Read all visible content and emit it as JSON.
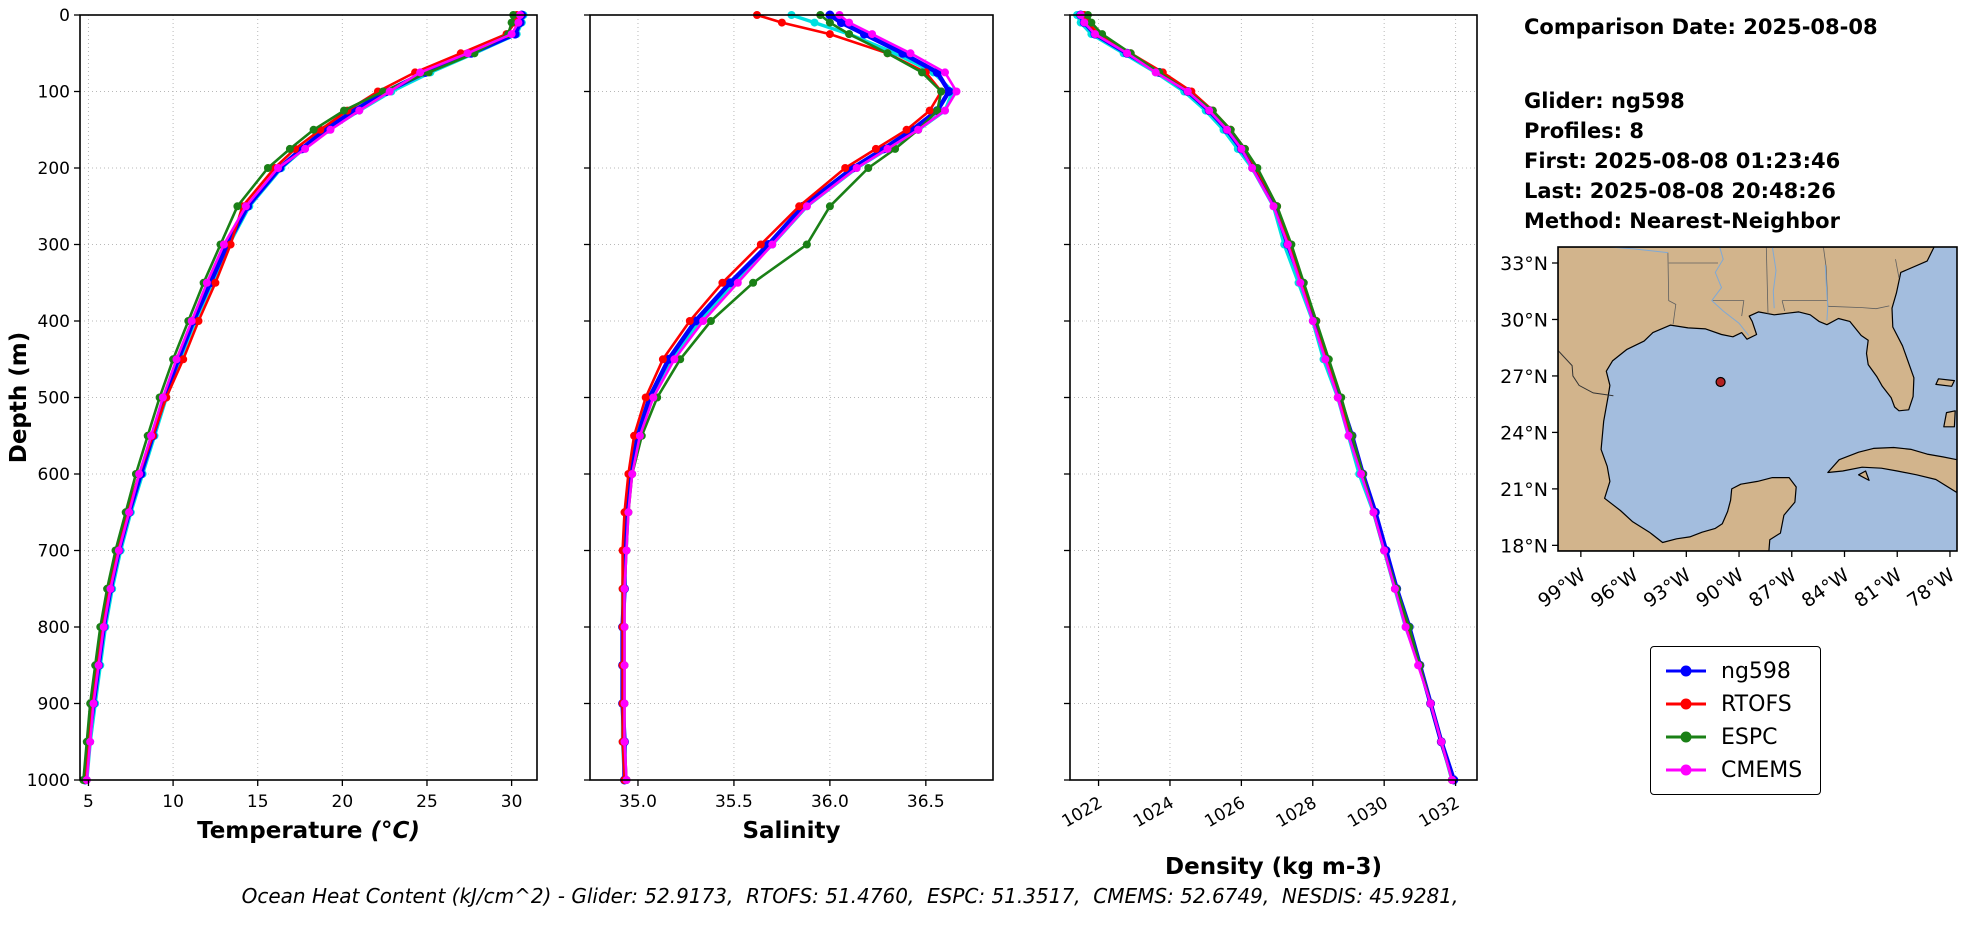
{
  "info_panel": {
    "lines": [
      "Comparison Date: 2025-08-08",
      "Glider: ng598",
      "Profiles: 8",
      "First: 2025-08-08 01:23:46",
      "Last: 2025-08-08 20:48:26",
      "Method: Nearest-Neighbor"
    ]
  },
  "legend": {
    "items": [
      {
        "label": "ng598",
        "color": "#0000ff"
      },
      {
        "label": "RTOFS",
        "color": "#ff0000"
      },
      {
        "label": "ESPC",
        "color": "#1a8016"
      },
      {
        "label": "CMEMS",
        "color": "#ff00ff"
      }
    ]
  },
  "footer": {
    "text": "Ocean Heat Content (kJ/cm^2) - Glider: 52.9173,  RTOFS: 51.4760,  ESPC: 51.3517,  CMEMS: 52.6749,  NESDIS: 45.9281,"
  },
  "map": {
    "colors": {
      "land": "#d2b48c",
      "water": "#a3bdde",
      "marker": "#b22222",
      "river": "#7fa9d6",
      "state_line": "#5f5f5f"
    },
    "marker": {
      "lon": -91.05,
      "lat": 26.68
    },
    "lat_ticks": [
      {
        "v": 33,
        "label": "33°N"
      },
      {
        "v": 30,
        "label": "30°N"
      },
      {
        "v": 27,
        "label": "27°N"
      },
      {
        "v": 24,
        "label": "24°N"
      },
      {
        "v": 21,
        "label": "21°N"
      },
      {
        "v": 18,
        "label": "18°N"
      }
    ],
    "lon_ticks": [
      {
        "v": -99,
        "label": "99°W"
      },
      {
        "v": -96,
        "label": "96°W"
      },
      {
        "v": -93,
        "label": "93°W"
      },
      {
        "v": -90,
        "label": "90°W"
      },
      {
        "v": -87,
        "label": "87°W"
      },
      {
        "v": -84,
        "label": "84°W"
      },
      {
        "v": -81,
        "label": "81°W"
      },
      {
        "v": -78,
        "label": "78°W"
      }
    ]
  },
  "chart_data": {
    "type": "line",
    "ylabel": "Depth (m)",
    "ylim": [
      0,
      1000
    ],
    "yticks": [
      0,
      100,
      200,
      300,
      400,
      500,
      600,
      700,
      800,
      900,
      1000
    ],
    "depths": [
      0,
      10,
      25,
      50,
      75,
      100,
      125,
      150,
      175,
      200,
      250,
      300,
      350,
      400,
      450,
      500,
      550,
      600,
      650,
      700,
      750,
      800,
      850,
      900,
      950,
      1000
    ],
    "charts": [
      {
        "id": "temperature",
        "xlabel": "Temperature ",
        "xlabel_unit": "(°C)",
        "xlim": [
          4.5,
          31.5
        ],
        "xticks": [
          5,
          10,
          15,
          20,
          25,
          30
        ],
        "xtick_labels": [
          "5",
          "10",
          "15",
          "20",
          "25",
          "30"
        ],
        "rotate_xticks": false,
        "series": [
          {
            "name": "glider-profiles",
            "color": "#00e0e0",
            "lw": 3.5,
            "r": 4,
            "values": [
              30.7,
              30.6,
              30.3,
              27.8,
              25.2,
              22.9,
              21.0,
              19.2,
              17.7,
              16.4,
              14.5,
              13.3,
              12.3,
              11.3,
              10.4,
              9.6,
              8.9,
              8.2,
              7.5,
              6.9,
              6.4,
              6.0,
              5.7,
              5.4,
              5.1,
              4.9
            ]
          },
          {
            "name": "ng598",
            "color": "#0000ff",
            "lw": 4.5,
            "r": 4.5,
            "values": [
              30.6,
              30.5,
              30.2,
              27.6,
              24.9,
              22.6,
              20.7,
              19.0,
              17.6,
              16.3,
              14.4,
              13.2,
              12.2,
              11.2,
              10.3,
              9.5,
              8.8,
              8.1,
              7.4,
              6.8,
              6.3,
              5.9,
              5.6,
              5.3,
              5.0,
              4.8
            ]
          },
          {
            "name": "RTOFS",
            "color": "#ff0000",
            "lw": 2.6,
            "r": 4,
            "values": [
              30.3,
              30.2,
              29.7,
              27.0,
              24.3,
              22.1,
              20.3,
              18.7,
              17.2,
              16.0,
              14.1,
              13.4,
              12.5,
              11.5,
              10.6,
              9.6,
              8.8,
              8.0,
              7.3,
              6.7,
              6.2,
              5.8,
              5.5,
              5.2,
              5.0,
              4.8
            ]
          },
          {
            "name": "ESPC",
            "color": "#1a8016",
            "lw": 2.6,
            "r": 4,
            "values": [
              30.1,
              30.0,
              29.8,
              27.8,
              25.1,
              22.4,
              20.1,
              18.3,
              16.9,
              15.6,
              13.8,
              12.8,
              11.8,
              10.9,
              10.0,
              9.2,
              8.5,
              7.8,
              7.2,
              6.6,
              6.1,
              5.7,
              5.4,
              5.1,
              4.9,
              4.7
            ]
          },
          {
            "name": "CMEMS",
            "color": "#ff00ff",
            "lw": 2.6,
            "r": 4,
            "values": [
              30.5,
              30.4,
              30.0,
              27.4,
              24.6,
              22.8,
              21.0,
              19.3,
              17.8,
              16.2,
              14.3,
              13.0,
              12.0,
              11.1,
              10.2,
              9.4,
              8.7,
              8.0,
              7.4,
              6.8,
              6.3,
              5.9,
              5.6,
              5.3,
              5.1,
              4.9
            ]
          }
        ]
      },
      {
        "id": "salinity",
        "xlabel": "Salinity",
        "xlabel_unit": "",
        "xlim": [
          34.75,
          36.85
        ],
        "xticks": [
          35.0,
          35.5,
          36.0,
          36.5
        ],
        "xtick_labels": [
          "35.0",
          "35.5",
          "36.0",
          "36.5"
        ],
        "rotate_xticks": false,
        "series": [
          {
            "name": "glider-profiles",
            "color": "#00e0e0",
            "lw": 3.5,
            "r": 4,
            "values": [
              35.8,
              35.92,
              36.1,
              36.34,
              36.54,
              36.64,
              36.6,
              36.46,
              36.3,
              36.14,
              35.88,
              35.7,
              35.5,
              35.32,
              35.18,
              35.06,
              34.99,
              34.96,
              34.94,
              34.93,
              34.92,
              34.92,
              34.92,
              34.92,
              34.92,
              34.93
            ]
          },
          {
            "name": "ng598",
            "color": "#0000ff",
            "lw": 4.5,
            "r": 4.5,
            "values": [
              36.0,
              36.06,
              36.18,
              36.38,
              36.56,
              36.62,
              36.56,
              36.43,
              36.28,
              36.12,
              35.86,
              35.68,
              35.48,
              35.3,
              35.16,
              35.06,
              35.0,
              34.96,
              34.94,
              34.93,
              34.93,
              34.92,
              34.92,
              34.92,
              34.93,
              34.93
            ]
          },
          {
            "name": "RTOFS",
            "color": "#ff0000",
            "lw": 2.6,
            "r": 4,
            "values": [
              35.62,
              35.75,
              36.0,
              36.3,
              36.5,
              36.58,
              36.52,
              36.4,
              36.24,
              36.08,
              35.84,
              35.64,
              35.44,
              35.27,
              35.13,
              35.04,
              34.98,
              34.95,
              34.93,
              34.92,
              34.92,
              34.92,
              34.92,
              34.92,
              34.92,
              34.93
            ]
          },
          {
            "name": "ESPC",
            "color": "#1a8016",
            "lw": 2.6,
            "r": 4,
            "values": [
              35.95,
              36.0,
              36.1,
              36.3,
              36.48,
              36.58,
              36.56,
              36.46,
              36.34,
              36.2,
              36.0,
              35.88,
              35.6,
              35.38,
              35.22,
              35.1,
              35.02,
              34.97,
              34.95,
              34.94,
              34.93,
              34.93,
              34.93,
              34.93,
              34.93,
              34.94
            ]
          },
          {
            "name": "CMEMS",
            "color": "#ff00ff",
            "lw": 2.6,
            "r": 4,
            "values": [
              36.05,
              36.1,
              36.22,
              36.42,
              36.6,
              36.66,
              36.6,
              36.46,
              36.3,
              36.14,
              35.88,
              35.7,
              35.52,
              35.34,
              35.19,
              35.08,
              35.01,
              34.97,
              34.95,
              34.94,
              34.93,
              34.93,
              34.93,
              34.93,
              34.93,
              34.94
            ]
          }
        ]
      },
      {
        "id": "density",
        "xlabel": "Density (kg m-3)",
        "xlabel_unit": "",
        "xlim": [
          1021.2,
          1032.6
        ],
        "xticks": [
          1022,
          1024,
          1026,
          1028,
          1030,
          1032
        ],
        "xtick_labels": [
          "1022",
          "1024",
          "1026",
          "1028",
          "1030",
          "1032"
        ],
        "rotate_xticks": true,
        "series": [
          {
            "name": "glider-profiles",
            "color": "#00e0e0",
            "lw": 3.5,
            "r": 4,
            "values": [
              1021.4,
              1021.5,
              1021.8,
              1022.7,
              1023.6,
              1024.4,
              1025.0,
              1025.5,
              1025.9,
              1026.3,
              1026.9,
              1027.2,
              1027.6,
              1028.0,
              1028.3,
              1028.7,
              1029.0,
              1029.3,
              1029.7,
              1030.0,
              1030.3,
              1030.6,
              1031.0,
              1031.3,
              1031.6,
              1031.9
            ]
          },
          {
            "name": "ng598",
            "color": "#0000ff",
            "lw": 4.5,
            "r": 4.5,
            "values": [
              1021.5,
              1021.6,
              1021.9,
              1022.8,
              1023.7,
              1024.5,
              1025.1,
              1025.6,
              1026.0,
              1026.35,
              1026.95,
              1027.3,
              1027.7,
              1028.05,
              1028.4,
              1028.75,
              1029.1,
              1029.4,
              1029.75,
              1030.05,
              1030.35,
              1030.7,
              1031.0,
              1031.3,
              1031.6,
              1031.95
            ]
          },
          {
            "name": "RTOFS",
            "color": "#ff0000",
            "lw": 2.6,
            "r": 4,
            "values": [
              1021.6,
              1021.7,
              1022.0,
              1022.9,
              1023.8,
              1024.6,
              1025.2,
              1025.7,
              1026.1,
              1026.4,
              1027.0,
              1027.35,
              1027.7,
              1028.1,
              1028.4,
              1028.7,
              1029.1,
              1029.4,
              1029.7,
              1030.0,
              1030.3,
              1030.65,
              1031.0,
              1031.3,
              1031.6,
              1031.9
            ]
          },
          {
            "name": "ESPC",
            "color": "#1a8016",
            "lw": 2.6,
            "r": 4,
            "values": [
              1021.7,
              1021.8,
              1022.1,
              1022.9,
              1023.7,
              1024.5,
              1025.2,
              1025.7,
              1026.1,
              1026.45,
              1027.0,
              1027.4,
              1027.75,
              1028.1,
              1028.45,
              1028.8,
              1029.1,
              1029.4,
              1029.7,
              1030.0,
              1030.35,
              1030.7,
              1031.0,
              1031.3,
              1031.6,
              1031.9
            ]
          },
          {
            "name": "CMEMS",
            "color": "#ff00ff",
            "lw": 2.6,
            "r": 4,
            "values": [
              1021.5,
              1021.6,
              1021.9,
              1022.8,
              1023.6,
              1024.5,
              1025.1,
              1025.6,
              1026.0,
              1026.3,
              1026.9,
              1027.3,
              1027.65,
              1028.0,
              1028.35,
              1028.7,
              1029.0,
              1029.35,
              1029.7,
              1030.0,
              1030.3,
              1030.6,
              1030.95,
              1031.3,
              1031.6,
              1031.9
            ]
          }
        ]
      }
    ]
  }
}
